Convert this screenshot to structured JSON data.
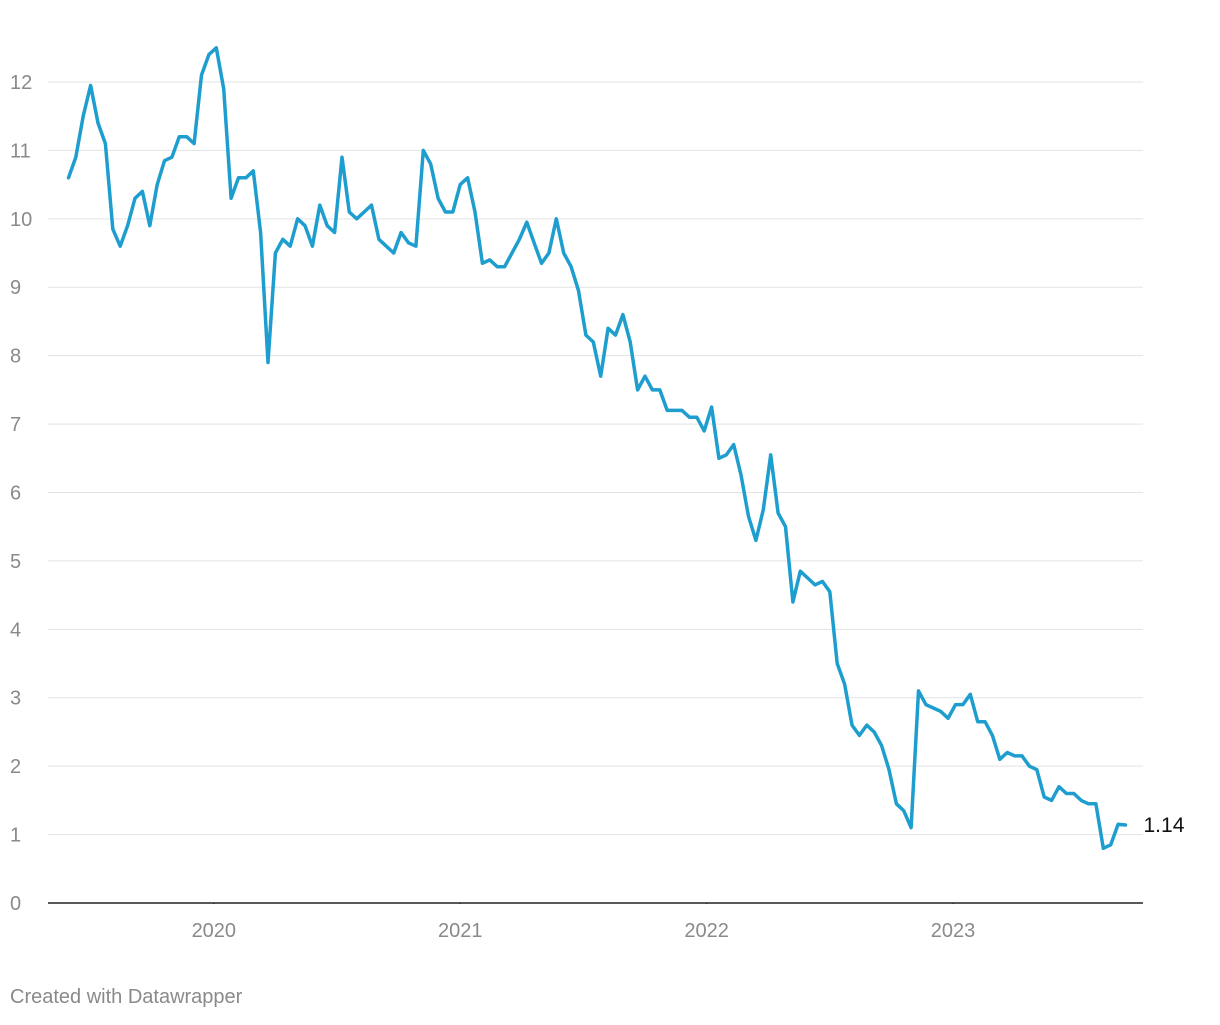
{
  "chart_data": {
    "type": "line",
    "x": [
      2019.41,
      2019.44,
      2019.47,
      2019.5,
      2019.53,
      2019.56,
      2019.59,
      2019.62,
      2019.65,
      2019.68,
      2019.71,
      2019.74,
      2019.77,
      2019.8,
      2019.83,
      2019.86,
      2019.89,
      2019.92,
      2019.95,
      2019.98,
      2020.01,
      2020.04,
      2020.07,
      2020.1,
      2020.13,
      2020.16,
      2020.19,
      2020.22,
      2020.25,
      2020.28,
      2020.31,
      2020.34,
      2020.37,
      2020.4,
      2020.43,
      2020.46,
      2020.49,
      2020.52,
      2020.55,
      2020.58,
      2020.61,
      2020.64,
      2020.67,
      2020.7,
      2020.73,
      2020.76,
      2020.79,
      2020.82,
      2020.85,
      2020.88,
      2020.91,
      2020.94,
      2020.97,
      2021.0,
      2021.03,
      2021.06,
      2021.09,
      2021.12,
      2021.15,
      2021.18,
      2021.21,
      2021.24,
      2021.27,
      2021.3,
      2021.33,
      2021.36,
      2021.39,
      2021.42,
      2021.45,
      2021.48,
      2021.51,
      2021.54,
      2021.57,
      2021.6,
      2021.63,
      2021.66,
      2021.69,
      2021.72,
      2021.75,
      2021.78,
      2021.81,
      2021.84,
      2021.87,
      2021.9,
      2021.93,
      2021.96,
      2021.99,
      2022.02,
      2022.05,
      2022.08,
      2022.11,
      2022.14,
      2022.17,
      2022.2,
      2022.23,
      2022.26,
      2022.29,
      2022.32,
      2022.35,
      2022.38,
      2022.41,
      2022.44,
      2022.47,
      2022.5,
      2022.53,
      2022.56,
      2022.59,
      2022.62,
      2022.65,
      2022.68,
      2022.71,
      2022.74,
      2022.77,
      2022.8,
      2022.83,
      2022.86,
      2022.89,
      2022.92,
      2022.95,
      2022.98,
      2023.01,
      2023.04,
      2023.07,
      2023.1,
      2023.13,
      2023.16,
      2023.19,
      2023.22,
      2023.25,
      2023.28,
      2023.31,
      2023.34,
      2023.37,
      2023.4,
      2023.43,
      2023.46,
      2023.49,
      2023.52,
      2023.55,
      2023.58,
      2023.61,
      2023.64,
      2023.67,
      2023.7
    ],
    "series": [
      {
        "color": "#1d9ecf",
        "values": [
          10.6,
          10.9,
          11.5,
          11.95,
          11.4,
          11.1,
          9.85,
          9.6,
          9.9,
          10.3,
          10.4,
          9.9,
          10.5,
          10.85,
          10.9,
          11.2,
          11.2,
          11.1,
          12.1,
          12.4,
          12.5,
          11.9,
          10.3,
          10.6,
          10.6,
          10.7,
          9.8,
          7.9,
          9.5,
          9.7,
          9.6,
          10.0,
          9.9,
          9.6,
          10.2,
          9.9,
          9.8,
          10.9,
          10.1,
          10.0,
          10.1,
          10.2,
          9.7,
          9.6,
          9.5,
          9.8,
          9.65,
          9.6,
          11.0,
          10.8,
          10.3,
          10.1,
          10.1,
          10.5,
          10.6,
          10.1,
          9.35,
          9.4,
          9.3,
          9.3,
          9.5,
          9.7,
          9.95,
          9.65,
          9.35,
          9.5,
          10.0,
          9.5,
          9.3,
          8.95,
          8.3,
          8.2,
          7.7,
          8.4,
          8.3,
          8.6,
          8.2,
          7.5,
          7.7,
          7.5,
          7.5,
          7.2,
          7.2,
          7.2,
          7.1,
          7.1,
          6.9,
          7.25,
          6.5,
          6.55,
          6.7,
          6.25,
          5.65,
          5.3,
          5.75,
          6.55,
          5.7,
          5.5,
          4.4,
          4.85,
          4.75,
          4.65,
          4.7,
          4.55,
          3.5,
          3.2,
          2.6,
          2.45,
          2.6,
          2.5,
          2.3,
          1.95,
          1.45,
          1.35,
          1.1,
          3.1,
          2.9,
          2.85,
          2.8,
          2.7,
          2.9,
          2.9,
          3.05,
          2.65,
          2.65,
          2.45,
          2.1,
          2.2,
          2.15,
          2.15,
          2.0,
          1.95,
          1.55,
          1.5,
          1.7,
          1.6,
          1.6,
          1.5,
          1.45,
          1.45,
          0.8,
          0.85,
          1.15,
          1.14
        ]
      }
    ],
    "xlim": [
      2019.327,
      2023.771
    ],
    "xticks": [
      2020,
      2021,
      2022,
      2023
    ],
    "ylim": [
      0,
      12.9
    ],
    "yticks": [
      0,
      1,
      2,
      3,
      4,
      5,
      6,
      7,
      8,
      9,
      10,
      11,
      12
    ],
    "grid": true,
    "credit": "Created with Datawrapper"
  }
}
